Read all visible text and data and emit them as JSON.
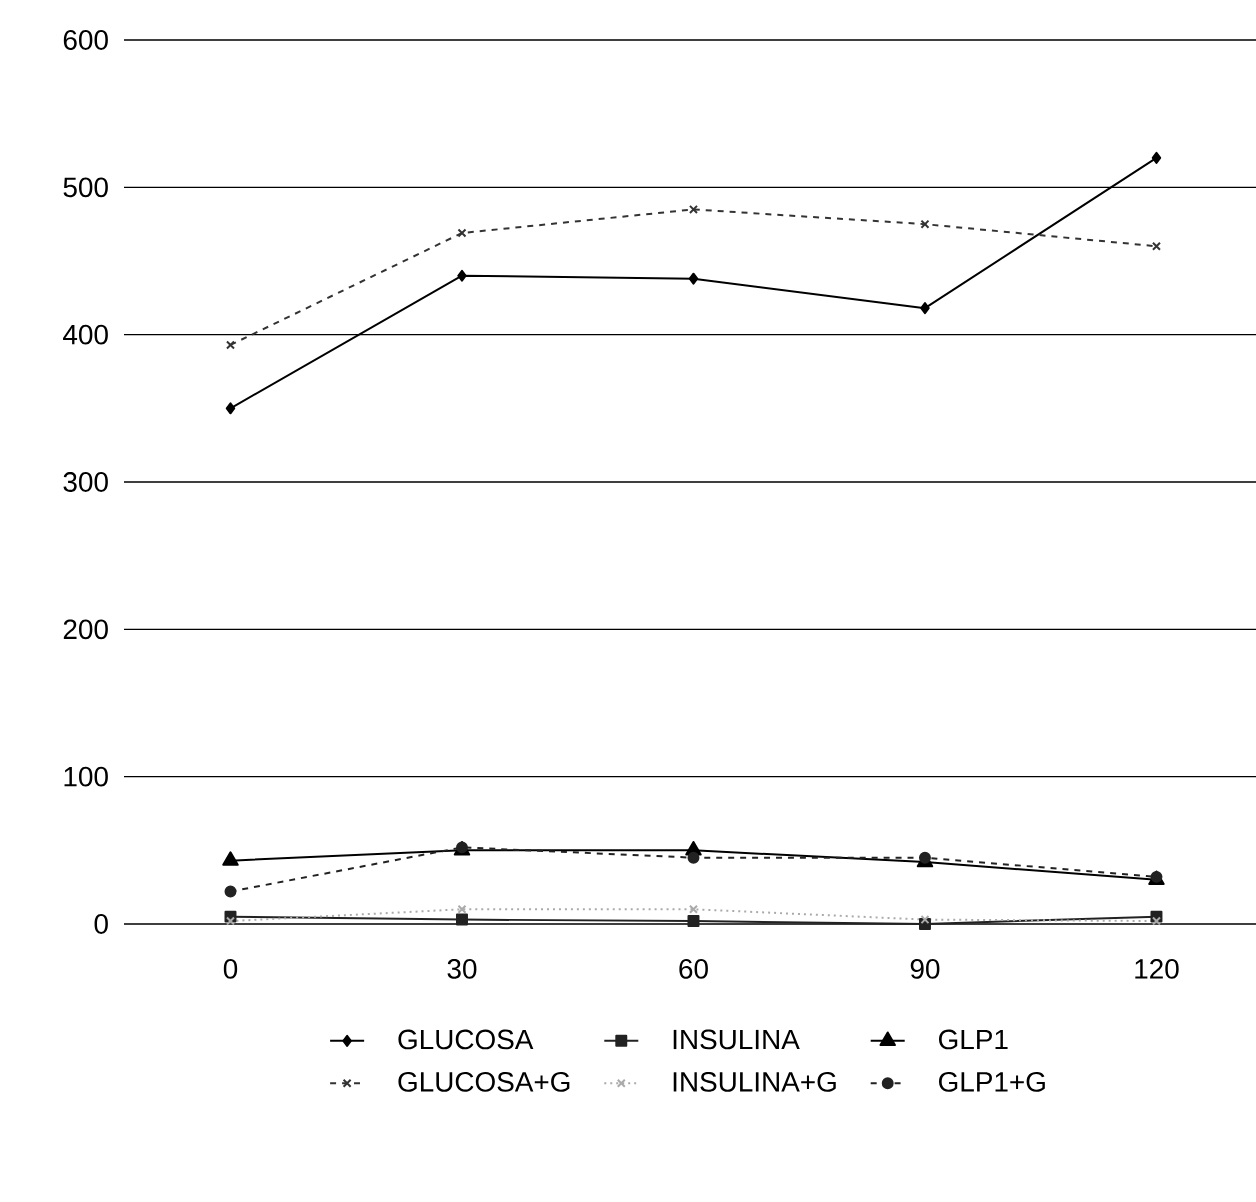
{
  "chart_data": {
    "type": "line",
    "categories": [
      "0",
      "30",
      "60",
      "90",
      "120"
    ],
    "series": [
      {
        "name": "GLUCOSA",
        "color": "#000000",
        "marker": "diamond",
        "line_style": "solid",
        "values": [
          350,
          440,
          438,
          418,
          520
        ]
      },
      {
        "name": "INSULINA",
        "color": "#222222",
        "marker": "square",
        "line_style": "solid",
        "values": [
          5,
          3,
          2,
          0,
          5
        ]
      },
      {
        "name": "GLP1",
        "color": "#000000",
        "marker": "triangle",
        "line_style": "solid",
        "values": [
          43,
          50,
          50,
          42,
          30
        ]
      },
      {
        "name": "GLUCOSA+G",
        "color": "#333333",
        "marker": "cross",
        "line_style": "dashed",
        "values": [
          393,
          469,
          485,
          475,
          460
        ]
      },
      {
        "name": "INSULINA+G",
        "color": "#aaaaaa",
        "marker": "cross",
        "line_style": "dotted",
        "values": [
          2,
          10,
          10,
          3,
          2
        ]
      },
      {
        "name": "GLP1+G",
        "color": "#222222",
        "marker": "circle",
        "line_style": "dashed",
        "values": [
          22,
          52,
          45,
          45,
          32
        ]
      }
    ],
    "ylim": [
      0,
      600
    ],
    "yticks": [
      0,
      100,
      200,
      300,
      400,
      500,
      600
    ],
    "grid": "y",
    "legend": "bottom"
  }
}
